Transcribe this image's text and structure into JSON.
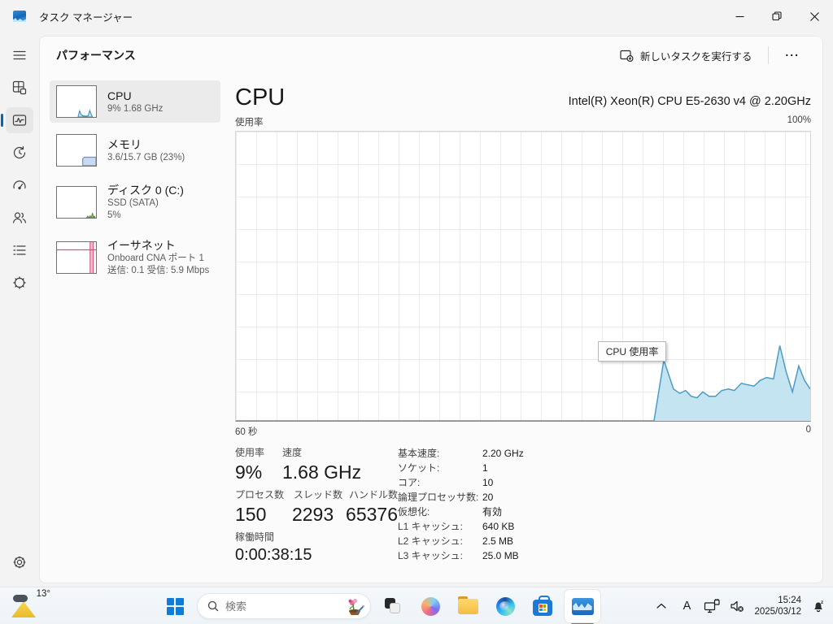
{
  "window": {
    "title": "タスク マネージャー"
  },
  "header": {
    "page_title": "パフォーマンス",
    "run_task": "新しいタスクを実行する",
    "more_label": "..."
  },
  "perf_list": [
    {
      "title": "CPU",
      "sub1": "9%  1.68 GHz",
      "sub2": ""
    },
    {
      "title": "メモリ",
      "sub1": "3.6/15.7 GB (23%)",
      "sub2": ""
    },
    {
      "title": "ディスク 0 (C:)",
      "sub1": "SSD (SATA)",
      "sub2": "5%"
    },
    {
      "title": "イーサネット",
      "sub1": "Onboard CNA ポート 1",
      "sub2": "送信: 0.1 受信: 5.9 Mbps"
    }
  ],
  "main": {
    "title": "CPU",
    "subtitle": "Intel(R) Xeon(R) CPU E5-2630 v4 @ 2.20GHz",
    "axis_top_left": "使用率",
    "axis_top_right": "100%",
    "axis_bottom_left": "60 秒",
    "axis_bottom_right": "0",
    "tooltip": "CPU 使用率",
    "stats": {
      "usage_label": "使用率",
      "usage_value": "9%",
      "speed_label": "速度",
      "speed_value": "1.68 GHz",
      "processes_label": "プロセス数",
      "processes_value": "150",
      "threads_label": "スレッド数",
      "threads_value": "2293",
      "handles_label": "ハンドル数",
      "handles_value": "65376",
      "uptime_label": "稼働時間",
      "uptime_value": "0:00:38:15"
    },
    "details": [
      {
        "label": "基本速度:",
        "value": "2.20 GHz"
      },
      {
        "label": "ソケット:",
        "value": "1"
      },
      {
        "label": "コア:",
        "value": "10"
      },
      {
        "label": "論理プロセッサ数:",
        "value": "20"
      },
      {
        "label": "仮想化:",
        "value": "有効"
      },
      {
        "label": "L1 キャッシュ:",
        "value": "640 KB"
      },
      {
        "label": "L2 キャッシュ:",
        "value": "2.5 MB"
      },
      {
        "label": "L3 キャッシュ:",
        "value": "25.0 MB"
      }
    ]
  },
  "taskbar": {
    "weather_temp": "13°",
    "search_placeholder": "検索",
    "ime_indicator": "A",
    "tray_time": "15:24",
    "tray_date": "2025/03/12"
  },
  "chart_data": {
    "type": "area",
    "title": "CPU 使用率",
    "xlabel_left": "60 秒",
    "xlabel_right": "0",
    "ylim": [
      0,
      100
    ],
    "y_top_label": "100%",
    "series_name": "CPU usage %",
    "points": [
      [
        0,
        0
      ],
      [
        72.8,
        0
      ],
      [
        74.5,
        21
      ],
      [
        76.2,
        11
      ],
      [
        77.3,
        9.5
      ],
      [
        78.3,
        10.5
      ],
      [
        79.3,
        8.5
      ],
      [
        80.3,
        8
      ],
      [
        81.3,
        10
      ],
      [
        82.4,
        8.5
      ],
      [
        83.5,
        8.5
      ],
      [
        84.6,
        10.5
      ],
      [
        85.7,
        11
      ],
      [
        86.8,
        10.5
      ],
      [
        88,
        13
      ],
      [
        89.1,
        12.5
      ],
      [
        90.2,
        12
      ],
      [
        91.3,
        14
      ],
      [
        92.4,
        15
      ],
      [
        93.6,
        14.5
      ],
      [
        94.7,
        26
      ],
      [
        95.8,
        17
      ],
      [
        96.9,
        10
      ],
      [
        98,
        19
      ],
      [
        99,
        14
      ],
      [
        100,
        11
      ]
    ],
    "line_color": "#4a9bc6",
    "fill_color": "#c5e4f2",
    "grid": true
  }
}
